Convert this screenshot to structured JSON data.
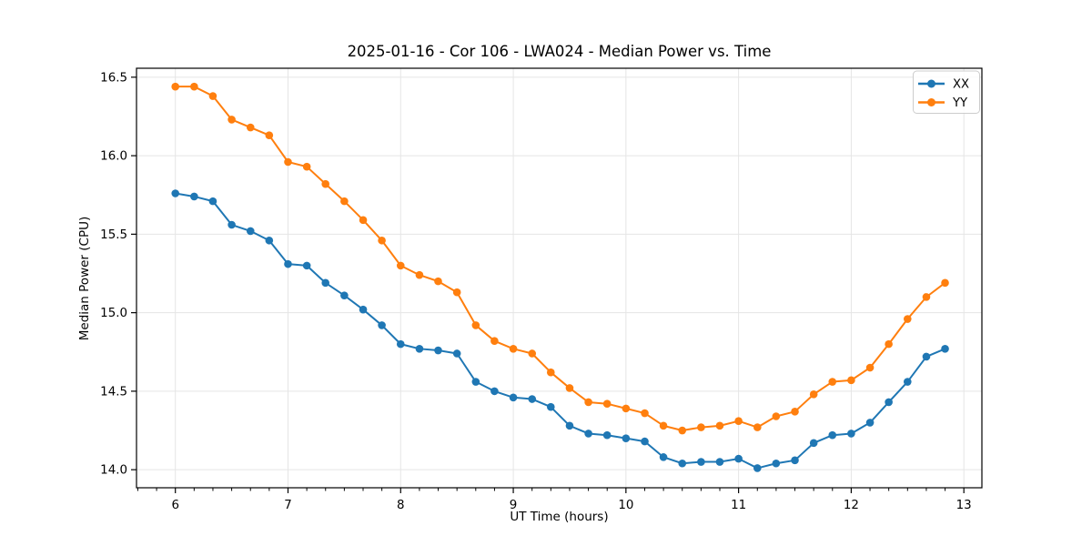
{
  "chart_data": {
    "type": "line",
    "title": "2025-01-16 - Cor 106 - LWA024 - Median Power vs. Time",
    "xlabel": "UT Time (hours)",
    "ylabel": "Median Power (CPU)",
    "xlim": [
      5.655,
      13.16
    ],
    "ylim": [
      13.885,
      16.557
    ],
    "x_ticks": [
      6,
      7,
      8,
      9,
      10,
      11,
      12,
      13
    ],
    "x_tick_labels": [
      "6",
      "7",
      "8",
      "9",
      "10",
      "11",
      "12",
      "13"
    ],
    "x_minor_step": 0.166667,
    "y_ticks": [
      14.0,
      14.5,
      15.0,
      15.5,
      16.0,
      16.5
    ],
    "y_tick_labels": [
      "14.0",
      "14.5",
      "15.0",
      "15.5",
      "16.0",
      "16.5"
    ],
    "grid": true,
    "legend_position": "upper right",
    "background": "#ffffff",
    "grid_color": "#e5e5e5",
    "spine_color": "#000000",
    "x": [
      6.0,
      6.167,
      6.333,
      6.5,
      6.667,
      6.833,
      7.0,
      7.167,
      7.333,
      7.5,
      7.667,
      7.833,
      8.0,
      8.167,
      8.333,
      8.5,
      8.667,
      8.833,
      9.0,
      9.167,
      9.333,
      9.5,
      9.667,
      9.833,
      10.0,
      10.167,
      10.333,
      10.5,
      10.667,
      10.833,
      11.0,
      11.167,
      11.333,
      11.5,
      11.667,
      11.833,
      12.0,
      12.167,
      12.333,
      12.5,
      12.667,
      12.833
    ],
    "series": [
      {
        "name": "XX",
        "color": "#1f77b4",
        "values": [
          15.76,
          15.74,
          15.71,
          15.56,
          15.52,
          15.46,
          15.31,
          15.3,
          15.19,
          15.11,
          15.02,
          14.92,
          14.8,
          14.77,
          14.76,
          14.74,
          14.56,
          14.5,
          14.46,
          14.45,
          14.4,
          14.28,
          14.23,
          14.22,
          14.2,
          14.18,
          14.08,
          14.04,
          14.05,
          14.05,
          14.07,
          14.01,
          14.04,
          14.06,
          14.17,
          14.22,
          14.23,
          14.3,
          14.43,
          14.56,
          14.72,
          14.77
        ]
      },
      {
        "name": "YY",
        "color": "#ff7f0e",
        "values": [
          16.44,
          16.44,
          16.38,
          16.23,
          16.18,
          16.13,
          15.96,
          15.93,
          15.82,
          15.71,
          15.59,
          15.46,
          15.3,
          15.24,
          15.2,
          15.13,
          14.92,
          14.82,
          14.77,
          14.74,
          14.62,
          14.52,
          14.43,
          14.42,
          14.39,
          14.36,
          14.28,
          14.25,
          14.27,
          14.28,
          14.31,
          14.27,
          14.34,
          14.37,
          14.48,
          14.56,
          14.57,
          14.65,
          14.8,
          14.96,
          15.1,
          15.19
        ]
      }
    ]
  }
}
